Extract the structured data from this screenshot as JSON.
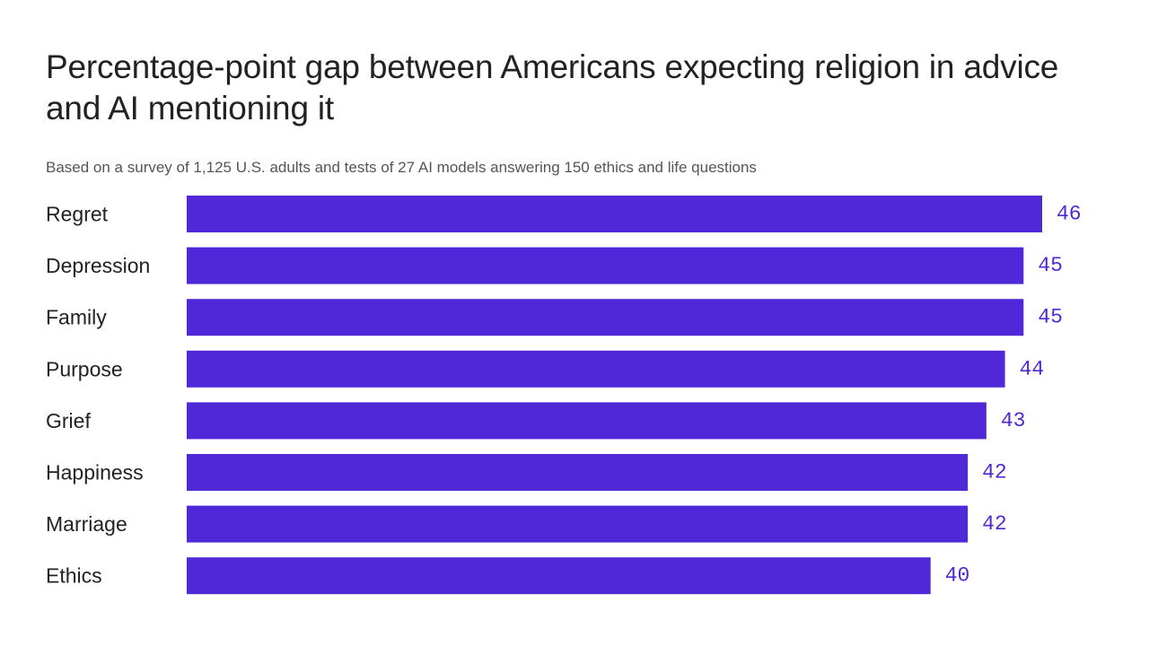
{
  "colors": {
    "bar": "#5128d8",
    "value_label": "#5128d8",
    "text": "#222222",
    "subtitle": "#555555",
    "background": "#ffffff"
  },
  "chart_data": {
    "type": "bar",
    "orientation": "horizontal",
    "title": "Percentage-point gap between Americans expecting religion in advice and AI mentioning it",
    "subtitle": "Based on a survey of 1,125 U.S. adults and tests of 27 AI models answering 150 ethics and life questions",
    "categories": [
      "Regret",
      "Depression",
      "Family",
      "Purpose",
      "Grief",
      "Happiness",
      "Marriage",
      "Ethics"
    ],
    "values": [
      46,
      45,
      45,
      44,
      43,
      42,
      42,
      40
    ],
    "value_labels": [
      "46",
      "45",
      "45",
      "44",
      "43",
      "42",
      "42",
      "40"
    ],
    "xlim": [
      0,
      46
    ],
    "grid": false,
    "legend": "none"
  }
}
